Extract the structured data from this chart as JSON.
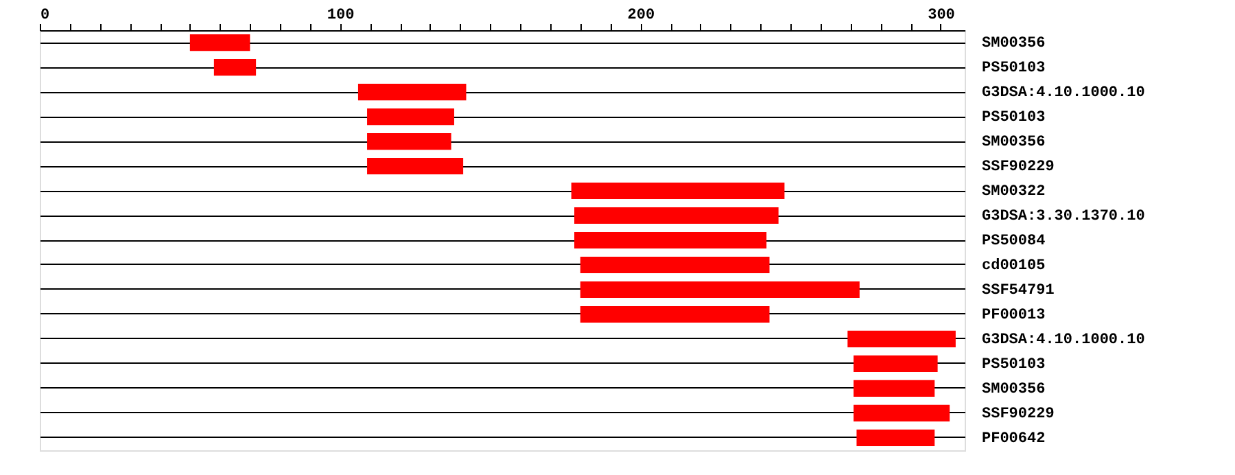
{
  "chart_data": {
    "type": "bar",
    "orientation": "horizontal",
    "categories": [
      "SM00356",
      "PS50103",
      "G3DSA:4.10.1000.10",
      "PS50103",
      "SM00356",
      "SSF90229",
      "SM00322",
      "G3DSA:3.30.1370.10",
      "PS50084",
      "cd00105",
      "SSF54791",
      "PF00013",
      "G3DSA:4.10.1000.10",
      "PS50103",
      "SM00356",
      "SSF90229",
      "PF00642"
    ],
    "base": [
      50,
      58,
      106,
      109,
      109,
      109,
      177,
      178,
      178,
      180,
      180,
      180,
      269,
      271,
      271,
      271,
      272
    ],
    "values": [
      20,
      14,
      36,
      29,
      28,
      32,
      71,
      68,
      64,
      63,
      93,
      63,
      36,
      28,
      27,
      32,
      26
    ],
    "color": "#ff0000",
    "xlim": [
      0,
      308
    ],
    "xticks": [
      0,
      {
        "value": 10,
        "label": null
      },
      {
        "value": 20,
        "label": null
      },
      {
        "value": 30,
        "label": null
      },
      {
        "value": 40,
        "label": null
      },
      {
        "value": 50,
        "label": null
      },
      {
        "value": 60,
        "label": null
      },
      {
        "value": 70,
        "label": null
      },
      {
        "value": 80,
        "label": null
      },
      {
        "value": 90,
        "label": null
      },
      100,
      {
        "value": 110,
        "label": null
      },
      {
        "value": 120,
        "label": null
      },
      {
        "value": 130,
        "label": null
      },
      {
        "value": 140,
        "label": null
      },
      {
        "value": 150,
        "label": null
      },
      {
        "value": 160,
        "label": null
      },
      {
        "value": 170,
        "label": null
      },
      {
        "value": 180,
        "label": null
      },
      {
        "value": 190,
        "label": null
      },
      200,
      {
        "value": 210,
        "label": null
      },
      {
        "value": 220,
        "label": null
      },
      {
        "value": 230,
        "label": null
      },
      {
        "value": 240,
        "label": null
      },
      {
        "value": 250,
        "label": null
      },
      {
        "value": 260,
        "label": null
      },
      {
        "value": 270,
        "label": null
      },
      {
        "value": 280,
        "label": null
      },
      {
        "value": 290,
        "label": null
      },
      300
    ],
    "grid": "y"
  }
}
